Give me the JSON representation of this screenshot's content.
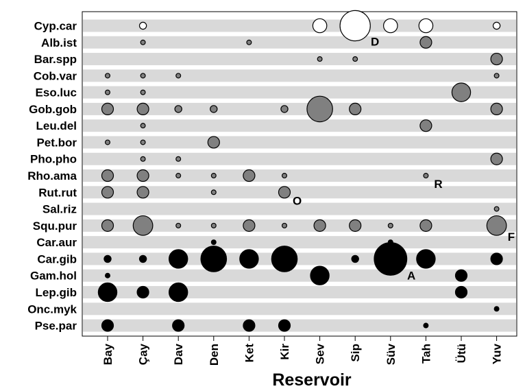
{
  "chart_data": {
    "type": "scatter",
    "subtype": "bubble",
    "title": "",
    "xlabel": "Reservoir",
    "ylabel": "",
    "x_categories": [
      "Bay",
      "Çay",
      "Dav",
      "Den",
      "Ket",
      "Kir",
      "Sev",
      "Sip",
      "Süv",
      "Tah",
      "Ütü",
      "Yuv"
    ],
    "y_categories": [
      "Cyp.car",
      "Alb.ist",
      "Bar.spp",
      "Cob.var",
      "Eso.luc",
      "Gob.gob",
      "Leu.del",
      "Pet.bor",
      "Pho.pho",
      "Rho.ama",
      "Rut.rut",
      "Sal.riz",
      "Squ.pur",
      "Car.aur",
      "Car.gib",
      "Gam.hol",
      "Lep.gib",
      "Onc.myk",
      "Pse.par"
    ],
    "grid": "horizontal bands",
    "legend": "none",
    "colors": {
      "band": "#d9d9d9",
      "white_group": "#ffffff",
      "grey_group": "#808080",
      "black_group": "#000000",
      "outline": "#000000"
    },
    "groups": [
      {
        "fill": "#ffffff",
        "species": [
          "Cyp.car"
        ]
      },
      {
        "fill": "#808080",
        "species": [
          "Alb.ist",
          "Bar.spp",
          "Cob.var",
          "Eso.luc",
          "Gob.gob",
          "Leu.del",
          "Pet.bor",
          "Pho.pho",
          "Rho.ama",
          "Rut.rut",
          "Sal.riz",
          "Squ.pur"
        ]
      },
      {
        "fill": "#000000",
        "species": [
          "Car.aur",
          "Car.gib",
          "Gam.hol",
          "Lep.gib",
          "Onc.myk",
          "Pse.par"
        ]
      }
    ],
    "points": [
      {
        "species": "Cyp.car",
        "reservoir": "Çay",
        "size": 1.5
      },
      {
        "species": "Cyp.car",
        "reservoir": "Sev",
        "size": 3
      },
      {
        "species": "Cyp.car",
        "reservoir": "Sip",
        "size": 6.5
      },
      {
        "species": "Cyp.car",
        "reservoir": "Süv",
        "size": 3
      },
      {
        "species": "Cyp.car",
        "reservoir": "Tah",
        "size": 3
      },
      {
        "species": "Cyp.car",
        "reservoir": "Yuv",
        "size": 1.5
      },
      {
        "species": "Alb.ist",
        "reservoir": "Çay",
        "size": 1
      },
      {
        "species": "Alb.ist",
        "reservoir": "Ket",
        "size": 1
      },
      {
        "species": "Alb.ist",
        "reservoir": "Tah",
        "size": 2.5
      },
      {
        "species": "Bar.spp",
        "reservoir": "Sev",
        "size": 1
      },
      {
        "species": "Bar.spp",
        "reservoir": "Sip",
        "size": 1
      },
      {
        "species": "Bar.spp",
        "reservoir": "Yuv",
        "size": 2.5
      },
      {
        "species": "Cob.var",
        "reservoir": "Bay",
        "size": 1
      },
      {
        "species": "Cob.var",
        "reservoir": "Çay",
        "size": 1
      },
      {
        "species": "Cob.var",
        "reservoir": "Dav",
        "size": 1
      },
      {
        "species": "Cob.var",
        "reservoir": "Yuv",
        "size": 1
      },
      {
        "species": "Eso.luc",
        "reservoir": "Bay",
        "size": 1
      },
      {
        "species": "Eso.luc",
        "reservoir": "Çay",
        "size": 1
      },
      {
        "species": "Eso.luc",
        "reservoir": "Ütü",
        "size": 4
      },
      {
        "species": "Gob.gob",
        "reservoir": "Bay",
        "size": 2.5
      },
      {
        "species": "Gob.gob",
        "reservoir": "Çay",
        "size": 2.5
      },
      {
        "species": "Gob.gob",
        "reservoir": "Dav",
        "size": 1.5
      },
      {
        "species": "Gob.gob",
        "reservoir": "Den",
        "size": 1.5
      },
      {
        "species": "Gob.gob",
        "reservoir": "Kir",
        "size": 1.5
      },
      {
        "species": "Gob.gob",
        "reservoir": "Sev",
        "size": 5.5
      },
      {
        "species": "Gob.gob",
        "reservoir": "Sip",
        "size": 2.5
      },
      {
        "species": "Gob.gob",
        "reservoir": "Yuv",
        "size": 2.5
      },
      {
        "species": "Leu.del",
        "reservoir": "Çay",
        "size": 1
      },
      {
        "species": "Leu.del",
        "reservoir": "Tah",
        "size": 2.5
      },
      {
        "species": "Pet.bor",
        "reservoir": "Bay",
        "size": 1
      },
      {
        "species": "Pet.bor",
        "reservoir": "Çay",
        "size": 1
      },
      {
        "species": "Pet.bor",
        "reservoir": "Den",
        "size": 2.5
      },
      {
        "species": "Pho.pho",
        "reservoir": "Çay",
        "size": 1
      },
      {
        "species": "Pho.pho",
        "reservoir": "Dav",
        "size": 1
      },
      {
        "species": "Pho.pho",
        "reservoir": "Yuv",
        "size": 2.5
      },
      {
        "species": "Rho.ama",
        "reservoir": "Bay",
        "size": 2.5
      },
      {
        "species": "Rho.ama",
        "reservoir": "Çay",
        "size": 2.5
      },
      {
        "species": "Rho.ama",
        "reservoir": "Dav",
        "size": 1
      },
      {
        "species": "Rho.ama",
        "reservoir": "Den",
        "size": 1
      },
      {
        "species": "Rho.ama",
        "reservoir": "Ket",
        "size": 2.5
      },
      {
        "species": "Rho.ama",
        "reservoir": "Kir",
        "size": 1
      },
      {
        "species": "Rho.ama",
        "reservoir": "Tah",
        "size": 1
      },
      {
        "species": "Rut.rut",
        "reservoir": "Bay",
        "size": 2.5
      },
      {
        "species": "Rut.rut",
        "reservoir": "Çay",
        "size": 2.5
      },
      {
        "species": "Rut.rut",
        "reservoir": "Den",
        "size": 1
      },
      {
        "species": "Rut.rut",
        "reservoir": "Kir",
        "size": 2.5
      },
      {
        "species": "Sal.riz",
        "reservoir": "Yuv",
        "size": 1
      },
      {
        "species": "Squ.pur",
        "reservoir": "Bay",
        "size": 2.5
      },
      {
        "species": "Squ.pur",
        "reservoir": "Çay",
        "size": 4.2
      },
      {
        "species": "Squ.pur",
        "reservoir": "Dav",
        "size": 1
      },
      {
        "species": "Squ.pur",
        "reservoir": "Den",
        "size": 1
      },
      {
        "species": "Squ.pur",
        "reservoir": "Ket",
        "size": 2.5
      },
      {
        "species": "Squ.pur",
        "reservoir": "Kir",
        "size": 1
      },
      {
        "species": "Squ.pur",
        "reservoir": "Sev",
        "size": 2.5
      },
      {
        "species": "Squ.pur",
        "reservoir": "Sip",
        "size": 2.5
      },
      {
        "species": "Squ.pur",
        "reservoir": "Süv",
        "size": 1
      },
      {
        "species": "Squ.pur",
        "reservoir": "Tah",
        "size": 2.5
      },
      {
        "species": "Squ.pur",
        "reservoir": "Yuv",
        "size": 4.2
      },
      {
        "species": "Car.aur",
        "reservoir": "Den",
        "size": 1
      },
      {
        "species": "Car.aur",
        "reservoir": "Süv",
        "size": 1
      },
      {
        "species": "Car.gib",
        "reservoir": "Bay",
        "size": 1.5
      },
      {
        "species": "Car.gib",
        "reservoir": "Çay",
        "size": 1.5
      },
      {
        "species": "Car.gib",
        "reservoir": "Dav",
        "size": 4
      },
      {
        "species": "Car.gib",
        "reservoir": "Den",
        "size": 5.5
      },
      {
        "species": "Car.gib",
        "reservoir": "Ket",
        "size": 4
      },
      {
        "species": "Car.gib",
        "reservoir": "Kir",
        "size": 5.5
      },
      {
        "species": "Car.gib",
        "reservoir": "Sip",
        "size": 1.5
      },
      {
        "species": "Car.gib",
        "reservoir": "Süv",
        "size": 7
      },
      {
        "species": "Car.gib",
        "reservoir": "Tah",
        "size": 4
      },
      {
        "species": "Car.gib",
        "reservoir": "Yuv",
        "size": 2.5
      },
      {
        "species": "Gam.hol",
        "reservoir": "Bay",
        "size": 1
      },
      {
        "species": "Gam.hol",
        "reservoir": "Sev",
        "size": 4
      },
      {
        "species": "Gam.hol",
        "reservoir": "Ütü",
        "size": 2.5
      },
      {
        "species": "Lep.gib",
        "reservoir": "Bay",
        "size": 4
      },
      {
        "species": "Lep.gib",
        "reservoir": "Çay",
        "size": 2.5
      },
      {
        "species": "Lep.gib",
        "reservoir": "Dav",
        "size": 4
      },
      {
        "species": "Lep.gib",
        "reservoir": "Ütü",
        "size": 2.5
      },
      {
        "species": "Onc.myk",
        "reservoir": "Yuv",
        "size": 1
      },
      {
        "species": "Pse.par",
        "reservoir": "Bay",
        "size": 2.5
      },
      {
        "species": "Pse.par",
        "reservoir": "Dav",
        "size": 2.5
      },
      {
        "species": "Pse.par",
        "reservoir": "Ket",
        "size": 2.5
      },
      {
        "species": "Pse.par",
        "reservoir": "Kir",
        "size": 2.5
      },
      {
        "species": "Pse.par",
        "reservoir": "Tah",
        "size": 1
      }
    ],
    "annotations": [
      {
        "text": "D",
        "species": "Cyp.car",
        "reservoir": "Sip"
      },
      {
        "text": "R",
        "species": "Rho.ama",
        "reservoir": "Tah"
      },
      {
        "text": "O",
        "species": "Rut.rut",
        "reservoir": "Kir"
      },
      {
        "text": "F",
        "species": "Squ.pur",
        "reservoir": "Yuv"
      },
      {
        "text": "A",
        "species": "Car.gib",
        "reservoir": "Süv"
      }
    ]
  }
}
